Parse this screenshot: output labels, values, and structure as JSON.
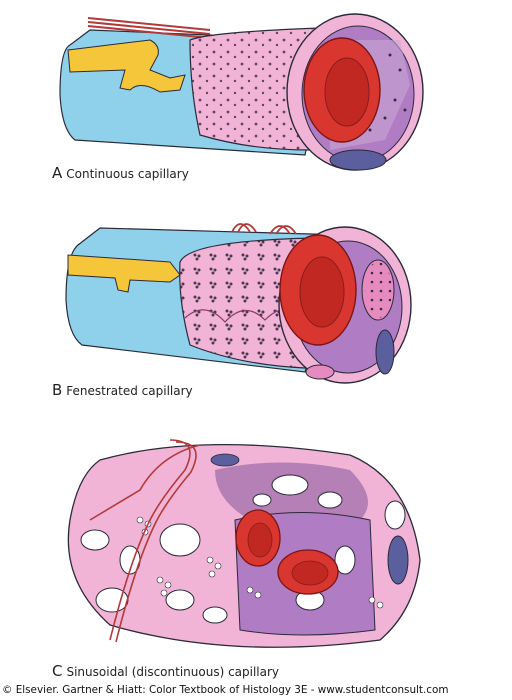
{
  "panels": [
    {
      "letter": "A",
      "label": "Continuous capillary"
    },
    {
      "letter": "B",
      "label": "Fenestrated capillary"
    },
    {
      "letter": "C",
      "label": "Sinusoidal (discontinuous) capillary"
    }
  ],
  "credit": "© Elsevier. Gartner & Hiatt: Color Textbook of Histology 3E - www.studentconsult.com",
  "colors": {
    "basal_lamina": "#8fd0ea",
    "endothelium": "#f2b4d6",
    "endothelium_dark": "#e58bbf",
    "lumen": "#b07cc4",
    "red_cell": "#d9362f",
    "pericyte": "#f5c53a",
    "nucleus": "#5c5f9e",
    "outline": "#2a2a3a"
  }
}
